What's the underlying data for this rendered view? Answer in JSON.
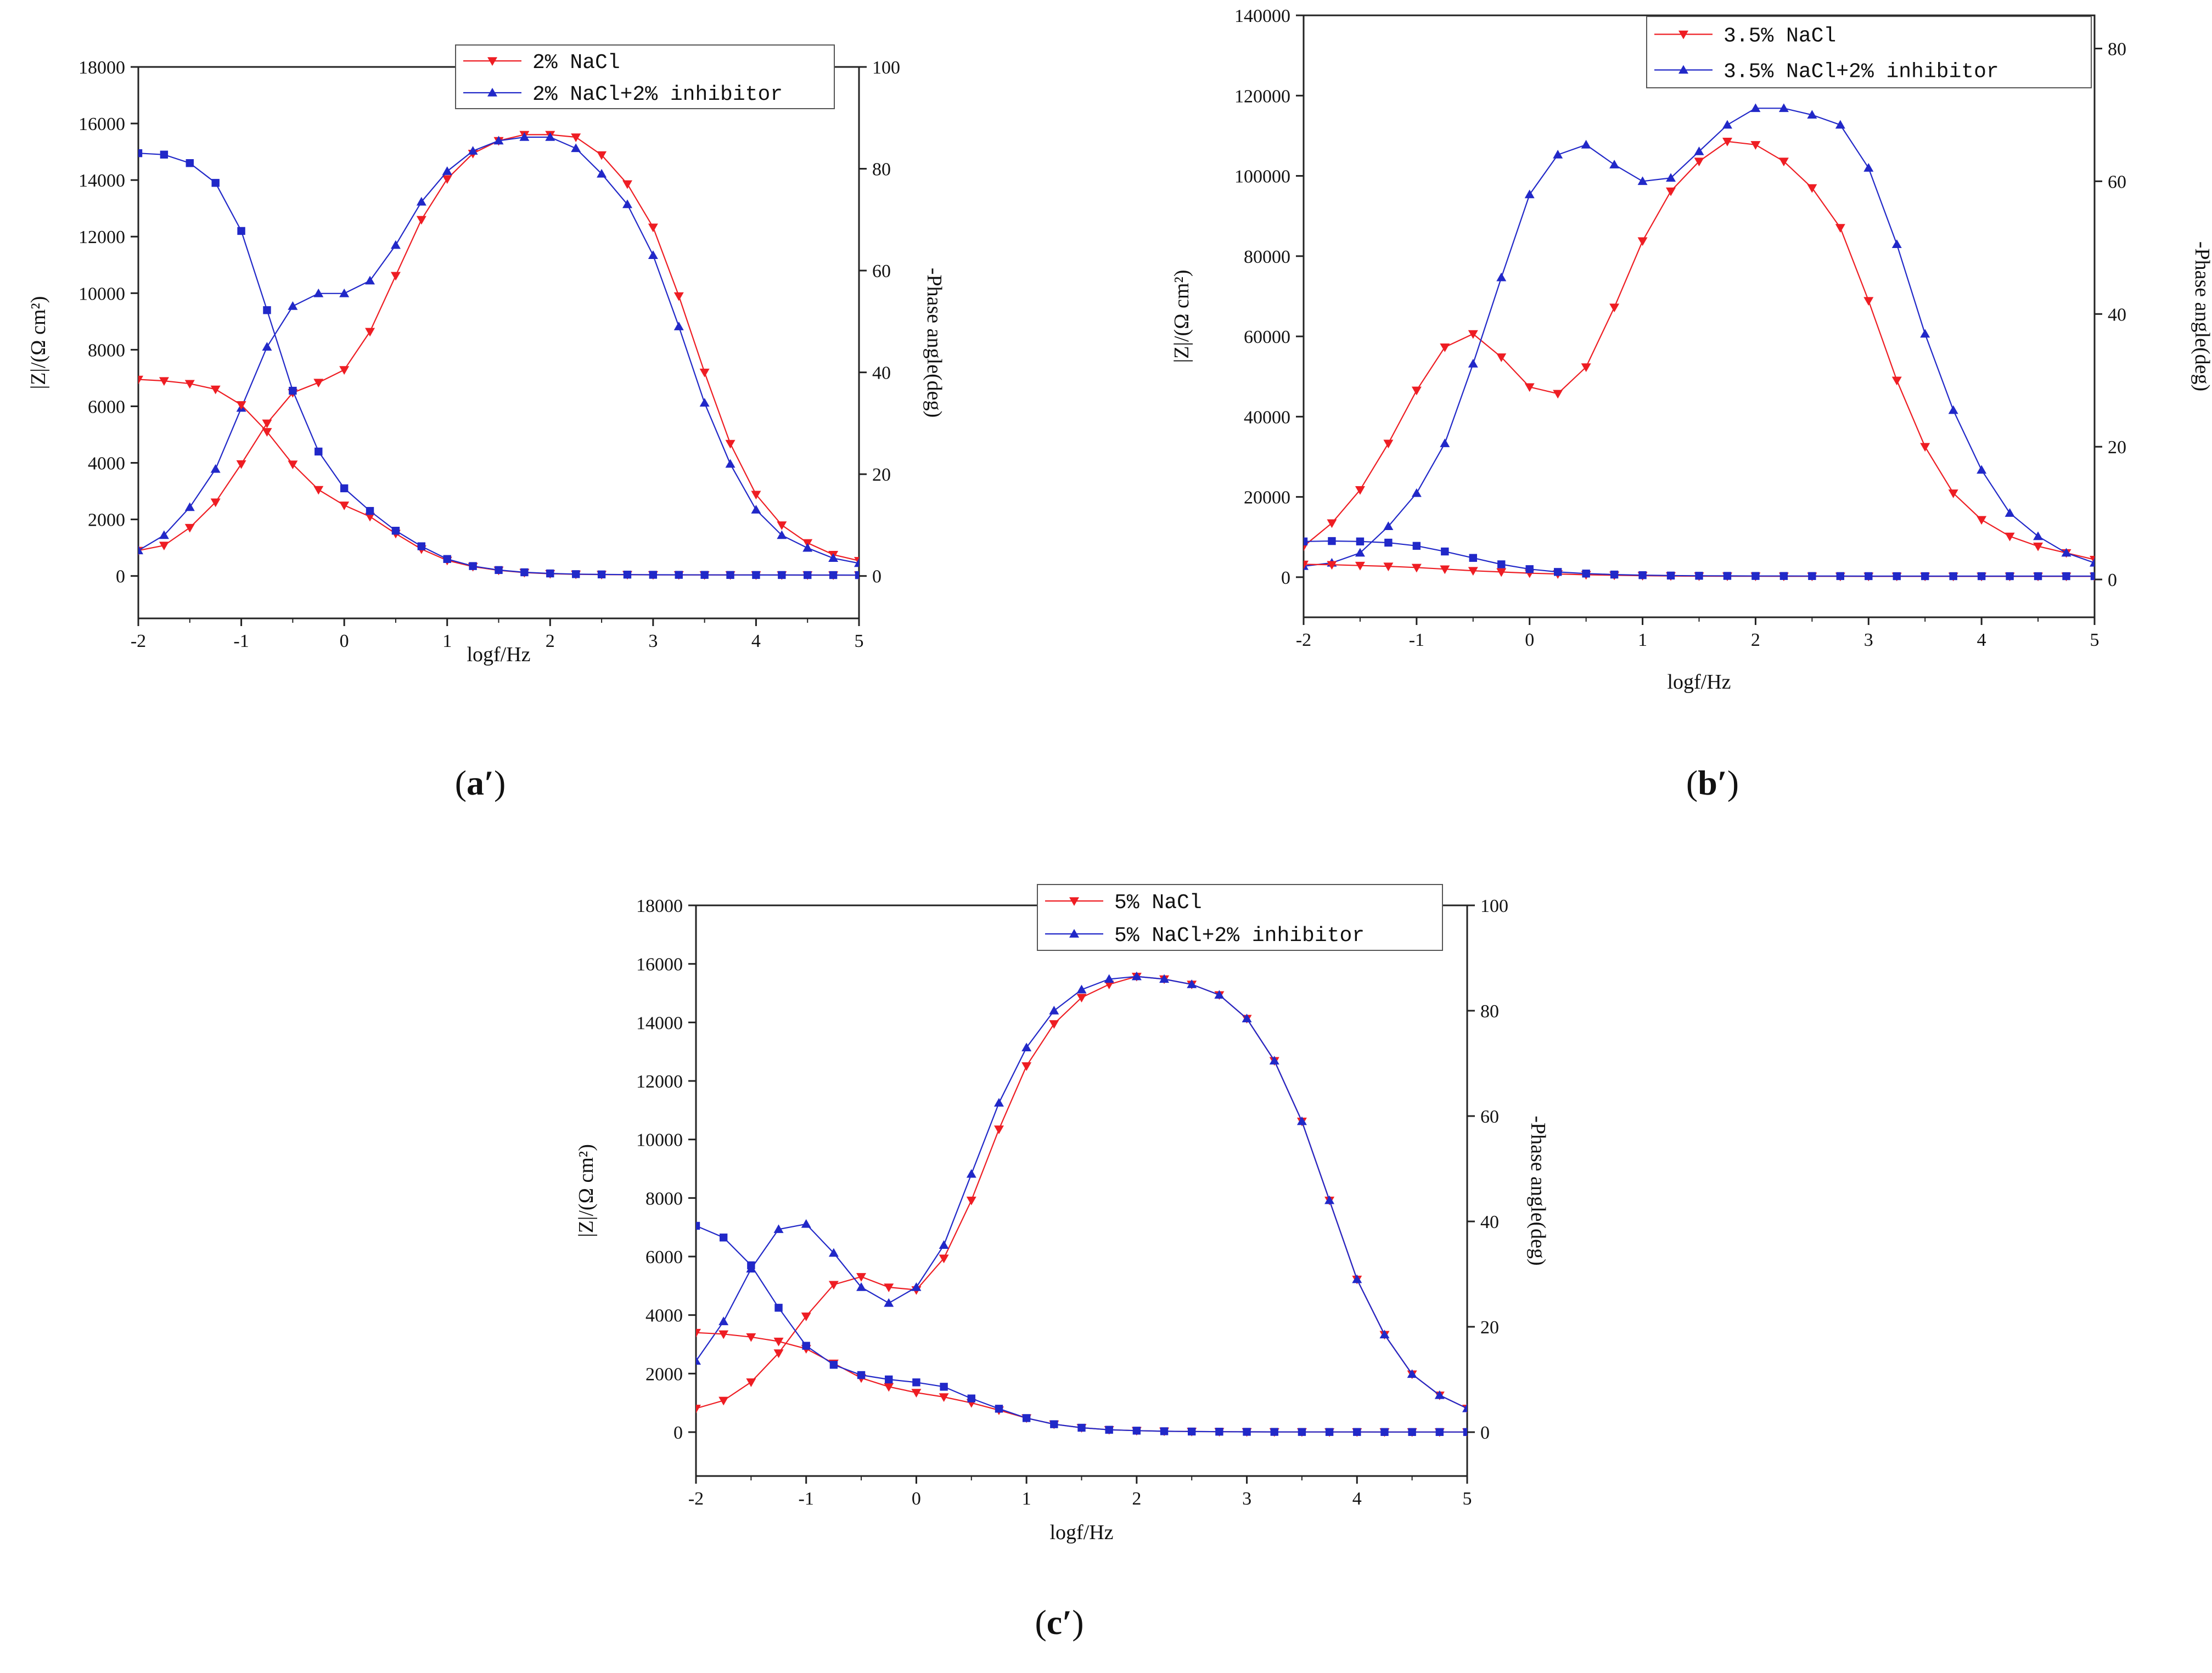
{
  "colors": {
    "red": "#ee1d23",
    "blue": "#2128c8",
    "axis": "#222222"
  },
  "captions": {
    "a": {
      "letter": "a",
      "prime": "′"
    },
    "b": {
      "letter": "b",
      "prime": "′"
    },
    "c": {
      "letter": "c",
      "prime": "′"
    }
  },
  "chart_data": [
    {
      "id": "a",
      "type": "line",
      "title": "",
      "xlabel": "logf/Hz",
      "ylabel": "|Z|/(Ω cm²)",
      "y2label": "-Phase angle(deg)",
      "xlim": [
        -2,
        5
      ],
      "ylim": [
        -1500,
        18000
      ],
      "y2lim": [
        -8.33,
        100
      ],
      "xticks": [
        "-2",
        "-1",
        "0",
        "1",
        "2",
        "3",
        "4",
        "5"
      ],
      "yticks": [
        "0",
        "2000",
        "4000",
        "6000",
        "8000",
        "10000",
        "12000",
        "14000",
        "16000",
        "18000"
      ],
      "y2ticks": [
        "0",
        "20",
        "40",
        "60",
        "80",
        "100"
      ],
      "x": [
        -2,
        -1.75,
        -1.5,
        -1.25,
        -1,
        -0.75,
        -0.5,
        -0.25,
        0,
        0.25,
        0.5,
        0.75,
        1,
        1.25,
        1.5,
        1.75,
        2,
        2.25,
        2.5,
        2.75,
        3,
        3.25,
        3.5,
        3.75,
        4,
        4.25,
        4.5,
        4.75,
        5
      ],
      "series": [
        {
          "name": "2% NaCl",
          "color": "red",
          "marker": "triangle-down",
          "axis": "phase",
          "values": [
            5,
            6,
            9.5,
            14.5,
            22,
            30,
            36,
            38,
            40.5,
            48,
            59,
            70,
            78,
            83,
            85.5,
            86.7,
            86.7,
            86.2,
            82.7,
            77,
            68.5,
            55,
            40,
            26,
            16,
            10,
            6.5,
            4.2,
            3
          ]
        },
        {
          "name": "2% NaCl+2% inhibitor",
          "color": "blue",
          "marker": "triangle-up",
          "axis": "phase",
          "values": [
            5,
            8,
            13.5,
            21,
            33,
            45,
            53,
            55.5,
            55.5,
            58,
            65,
            73.5,
            79.5,
            83.5,
            85.5,
            86.2,
            86.2,
            84,
            79,
            73,
            63,
            49,
            34,
            22,
            13,
            8,
            5.5,
            3.5,
            2.5
          ]
        },
        {
          "name": "2% NaCl |Z|",
          "color": "red",
          "marker": "triangle-down",
          "axis": "impedance",
          "values": [
            6950,
            6900,
            6800,
            6600,
            6050,
            5100,
            3950,
            3050,
            2500,
            2100,
            1500,
            950,
            550,
            330,
            200,
            120,
            80,
            60,
            50,
            45,
            40,
            38,
            36,
            35,
            34,
            33,
            32,
            31,
            30
          ]
        },
        {
          "name": "2% NaCl+2% inhibitor |Z|",
          "color": "blue",
          "marker": "square",
          "axis": "impedance",
          "values": [
            14950,
            14900,
            14600,
            13900,
            12200,
            9400,
            6550,
            4400,
            3100,
            2300,
            1600,
            1050,
            600,
            350,
            210,
            130,
            90,
            65,
            55,
            48,
            42,
            40,
            38,
            36,
            35,
            34,
            33,
            32,
            31
          ]
        }
      ],
      "legend": [
        "2% NaCl",
        "2% NaCl+2% inhibitor"
      ]
    },
    {
      "id": "b",
      "type": "line",
      "title": "",
      "xlabel": "logf/Hz",
      "ylabel": "|Z|/(Ω cm²)",
      "y2label": "-Phase angle(deg)",
      "xlim": [
        -2,
        5
      ],
      "ylim": [
        -10000,
        140000
      ],
      "y2lim": [
        -5.7,
        85
      ],
      "xticks": [
        "-2",
        "-1",
        "0",
        "1",
        "2",
        "3",
        "4",
        "5"
      ],
      "yticks": [
        "0",
        "20000",
        "40000",
        "60000",
        "80000",
        "100000",
        "120000",
        "140000"
      ],
      "y2ticks": [
        "0",
        "20",
        "40",
        "60",
        "80"
      ],
      "x": [
        -2,
        -1.75,
        -1.5,
        -1.25,
        -1,
        -0.75,
        -0.5,
        -0.25,
        0,
        0.25,
        0.5,
        0.75,
        1,
        1.25,
        1.5,
        1.75,
        2,
        2.25,
        2.5,
        2.75,
        3,
        3.25,
        3.5,
        3.75,
        4,
        4.25,
        4.5,
        4.75,
        5
      ],
      "series": [
        {
          "name": "3.5% NaCl",
          "color": "red",
          "marker": "triangle-down",
          "axis": "phase",
          "values": [
            5,
            8.5,
            13.5,
            20.5,
            28.5,
            35,
            37,
            33.5,
            29,
            28,
            32,
            41,
            51,
            58.5,
            63,
            66,
            65.5,
            63,
            59,
            53,
            42,
            30,
            20,
            13,
            9,
            6.5,
            5,
            4,
            3
          ]
        },
        {
          "name": "3.5% NaCl+2% inhibitor",
          "color": "blue",
          "marker": "triangle-up",
          "axis": "phase",
          "values": [
            2,
            2.5,
            4,
            8,
            13,
            20.5,
            32.5,
            45.5,
            58,
            64,
            65.5,
            62.5,
            60,
            60.5,
            64.5,
            68.5,
            71,
            71,
            70,
            68.5,
            62,
            50.5,
            37,
            25.5,
            16.5,
            10,
            6.5,
            4,
            2.5
          ]
        },
        {
          "name": "3.5% NaCl |Z|",
          "color": "red",
          "marker": "triangle-down",
          "axis": "impedance",
          "values": [
            3200,
            3100,
            2900,
            2700,
            2400,
            2000,
            1600,
            1300,
            1000,
            800,
            600,
            480,
            380,
            300,
            260,
            240,
            230,
            220,
            215,
            210,
            205,
            200,
            200,
            200,
            200,
            200,
            200,
            200,
            200
          ]
        },
        {
          "name": "3.5% NaCl+2% inhibitor |Z|",
          "color": "blue",
          "marker": "square",
          "axis": "impedance",
          "values": [
            8900,
            9000,
            8900,
            8600,
            7800,
            6400,
            4800,
            3200,
            2000,
            1300,
            900,
            650,
            500,
            400,
            350,
            320,
            300,
            290,
            280,
            270,
            260,
            250,
            250,
            250,
            250,
            250,
            250,
            250,
            250
          ]
        }
      ],
      "legend": [
        "3.5% NaCl",
        "3.5% NaCl+2% inhibitor"
      ]
    },
    {
      "id": "c",
      "type": "line",
      "title": "",
      "xlabel": "logf/Hz",
      "ylabel": "|Z|/(Ω cm²)",
      "y2label": "-Phase angle(deg)",
      "xlim": [
        -2,
        5
      ],
      "ylim": [
        -1500,
        18000
      ],
      "y2lim": [
        -8.33,
        100
      ],
      "xticks": [
        "-2",
        "-1",
        "0",
        "1",
        "2",
        "3",
        "4",
        "5"
      ],
      "yticks": [
        "0",
        "2000",
        "4000",
        "6000",
        "8000",
        "10000",
        "12000",
        "14000",
        "16000",
        "18000"
      ],
      "y2ticks": [
        "0",
        "20",
        "40",
        "60",
        "80",
        "100"
      ],
      "x": [
        -2,
        -1.75,
        -1.5,
        -1.25,
        -1,
        -0.75,
        -0.5,
        -0.25,
        0,
        0.25,
        0.5,
        0.75,
        1,
        1.25,
        1.5,
        1.75,
        2,
        2.25,
        2.5,
        2.75,
        3,
        3.25,
        3.5,
        3.75,
        4,
        4.25,
        4.5,
        4.75,
        5
      ],
      "series": [
        {
          "name": "5% NaCl",
          "color": "red",
          "marker": "triangle-down",
          "axis": "phase",
          "values": [
            4.5,
            6,
            9.5,
            15,
            22,
            28,
            29.5,
            27.5,
            27,
            33,
            44,
            57.5,
            69.5,
            77.5,
            82.5,
            85,
            86.5,
            86,
            85,
            83,
            78.5,
            70.5,
            59,
            44,
            29,
            18.5,
            11,
            7,
            4.5
          ]
        },
        {
          "name": "5% NaCl+2% inhibitor",
          "color": "blue",
          "marker": "triangle-up",
          "axis": "phase",
          "values": [
            13.5,
            21,
            31,
            38.5,
            39.5,
            34,
            27.5,
            24.5,
            27.5,
            35.5,
            49,
            62.5,
            73,
            80,
            84,
            86,
            86.5,
            86,
            85,
            83,
            78.5,
            70.5,
            59,
            44,
            29,
            18.5,
            11,
            7,
            4.5
          ]
        },
        {
          "name": "5% NaCl |Z|",
          "color": "red",
          "marker": "triangle-down",
          "axis": "impedance",
          "values": [
            3400,
            3350,
            3250,
            3100,
            2850,
            2350,
            1850,
            1550,
            1350,
            1200,
            1000,
            750,
            480,
            270,
            150,
            80,
            50,
            30,
            20,
            15,
            10,
            8,
            6,
            5,
            5,
            4,
            4,
            4,
            3
          ]
        },
        {
          "name": "5% NaCl+2% inhibitor |Z|",
          "color": "blue",
          "marker": "square",
          "axis": "impedance",
          "values": [
            7050,
            6650,
            5700,
            4250,
            2950,
            2300,
            1950,
            1800,
            1700,
            1550,
            1150,
            800,
            480,
            270,
            150,
            80,
            50,
            30,
            20,
            15,
            10,
            8,
            6,
            5,
            5,
            4,
            4,
            4,
            3
          ]
        }
      ],
      "legend": [
        "5% NaCl",
        "5% NaCl+2% inhibitor"
      ]
    }
  ]
}
